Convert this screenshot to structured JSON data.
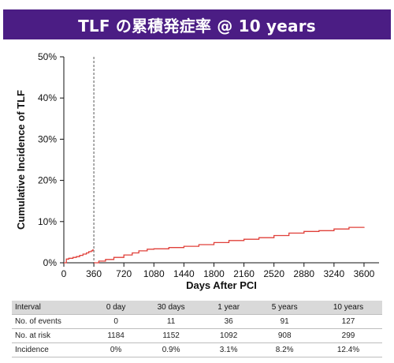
{
  "banner": {
    "title": "TLF の累積発症率 @ 10 years"
  },
  "chart_data": {
    "type": "line",
    "xlabel": "Days After PCI",
    "ylabel": "Cumulative Incidence of TLF",
    "xlim": [
      0,
      3780
    ],
    "ylim": [
      0,
      50
    ],
    "x_ticks": [
      0,
      360,
      720,
      1080,
      1440,
      1800,
      2160,
      2520,
      2880,
      3240,
      3600
    ],
    "y_ticks": [
      0,
      10,
      20,
      30,
      40,
      50
    ],
    "y_tick_labels": [
      "0%",
      "10%",
      "20%",
      "30%",
      "40%",
      "50%"
    ],
    "landmark_x": 360,
    "series_color": "#e0403a",
    "series": [
      {
        "segments": [
          {
            "x": [
              0,
              30,
              60,
              110,
              150,
              190,
              230,
              270,
              300,
              330,
              345,
              360
            ],
            "y": [
              0.0,
              0.9,
              1.1,
              1.3,
              1.5,
              1.8,
              2.1,
              2.4,
              2.7,
              2.9,
              3.1,
              3.1
            ]
          },
          {
            "x": [
              360,
              420,
              500,
              600,
              720,
              820,
              900,
              1000,
              1080,
              1260,
              1440,
              1620,
              1800,
              1980,
              2160,
              2340,
              2520,
              2700,
              2880,
              3060,
              3240,
              3420,
              3600
            ],
            "y": [
              0.0,
              0.4,
              0.8,
              1.3,
              1.9,
              2.4,
              2.9,
              3.3,
              3.4,
              3.7,
              4.0,
              4.4,
              4.9,
              5.4,
              5.7,
              6.1,
              6.6,
              7.2,
              7.6,
              7.8,
              8.2,
              8.6,
              8.7
            ]
          }
        ]
      }
    ]
  },
  "risk_table": {
    "header": [
      "Interval",
      "0 day",
      "30 days",
      "1 year",
      "5 years",
      "10 years"
    ],
    "rows": [
      [
        "No. of events",
        "0",
        "11",
        "36",
        "91",
        "127"
      ],
      [
        "No. at risk",
        "1184",
        "1152",
        "1092",
        "908",
        "299"
      ],
      [
        "Incidence",
        "0%",
        "0.9%",
        "3.1%",
        "8.2%",
        "12.4%"
      ]
    ]
  }
}
